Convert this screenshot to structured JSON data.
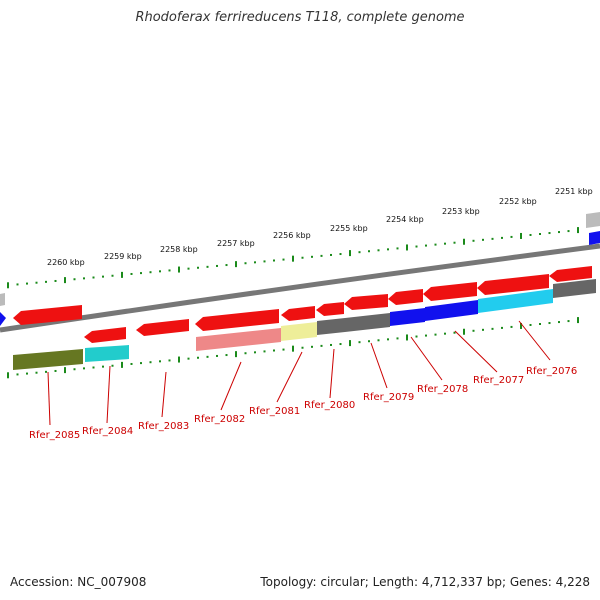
{
  "title": "Rhodoferax ferrireducens T118, complete genome",
  "footer": {
    "accession": "Accession: NC_007908",
    "topology": "Topology: circular; Length: 4,712,337 bp; Genes: 4,228"
  },
  "colors": {
    "backbone": "#777777",
    "tick": "#1a8a1a",
    "gene_label": "#cc0000",
    "red": "#ee1111",
    "blue": "#1111ee",
    "cyan": "#22ccee",
    "gray": "#666666",
    "olive": "#667722",
    "teal": "#22cccc",
    "pink": "#ee8888",
    "yellow": "#eeee99",
    "lightgray": "#bbbbbb"
  },
  "kbp_labels": [
    "2260 kbp",
    "2259 kbp",
    "2258 kbp",
    "2257 kbp",
    "2256 kbp",
    "2255 kbp",
    "2254 kbp",
    "2253 kbp",
    "2252 kbp",
    "2251 kbp"
  ],
  "gene_labels": [
    "Rfer_2085",
    "Rfer_2084",
    "Rfer_2083",
    "Rfer_2082",
    "Rfer_2081",
    "Rfer_2080",
    "Rfer_2079",
    "Rfer_2078",
    "Rfer_2077",
    "Rfer_2076"
  ]
}
